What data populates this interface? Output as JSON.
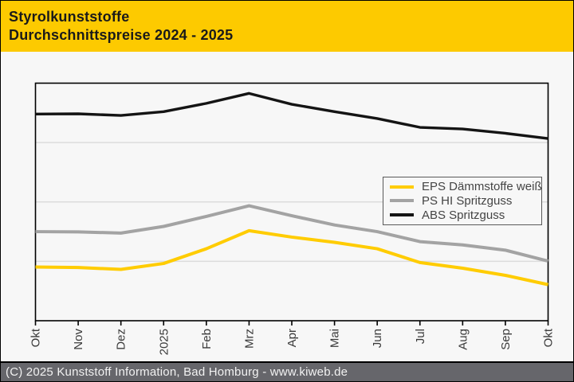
{
  "header": {
    "title": "Styrolkunststoffe",
    "subtitle": "Durchschnittspreise 2024 - 2025",
    "background": "#FDCA00",
    "text_color": "#1A1A1A"
  },
  "chart_data": {
    "type": "line",
    "title": "Styrolkunststoffe",
    "subtitle": "Durchschnittspreise 2024 - 2025",
    "categories": [
      "Okt",
      "Nov",
      "Dez",
      "2025",
      "Feb",
      "Mrz",
      "Apr",
      "Mai",
      "Jun",
      "Jul",
      "Aug",
      "Sep",
      "Okt"
    ],
    "series": [
      {
        "name": "EPS Dämmstoffe weiß",
        "color": "#FFCC00",
        "width": 4,
        "values": [
          22.6,
          22.4,
          21.6,
          24.1,
          30.3,
          37.9,
          35.2,
          33.0,
          30.3,
          24.5,
          22.1,
          19.1,
          15.2
        ]
      },
      {
        "name": "PS HI Spritzguss",
        "color": "#A3A3A3",
        "width": 4,
        "values": [
          37.5,
          37.4,
          36.9,
          39.7,
          43.9,
          48.4,
          44.2,
          40.3,
          37.5,
          33.3,
          31.9,
          29.7,
          25.1
        ]
      },
      {
        "name": "ABS Spritzguss",
        "color": "#141414",
        "width": 3.4,
        "values": [
          87.0,
          87.1,
          86.4,
          88.0,
          91.5,
          95.7,
          91.1,
          88.0,
          85.1,
          81.4,
          80.7,
          78.9,
          76.7
        ]
      }
    ],
    "xlabel": "",
    "ylabel": "",
    "ylim": [
      0,
      100
    ],
    "y_axis_labels_shown": false,
    "value_scale_note": "relative scale in % of plot height; source chart shows no y-axis values",
    "gridlines_at": [
      25,
      50,
      75
    ],
    "grid": true,
    "legend_position": "inside-right",
    "x_tick_rotation": -90,
    "grid_color": "#DCDCDC",
    "axis_color": "#000000",
    "tick_label_color": "#3A3A3A",
    "plot_background": "#F7F7F7"
  },
  "footer": {
    "text": "(C) 2025 Kunststoff Information, Bad Homburg - www.kiweb.de",
    "background": "#66666B",
    "text_color": "#F2F2F2"
  }
}
